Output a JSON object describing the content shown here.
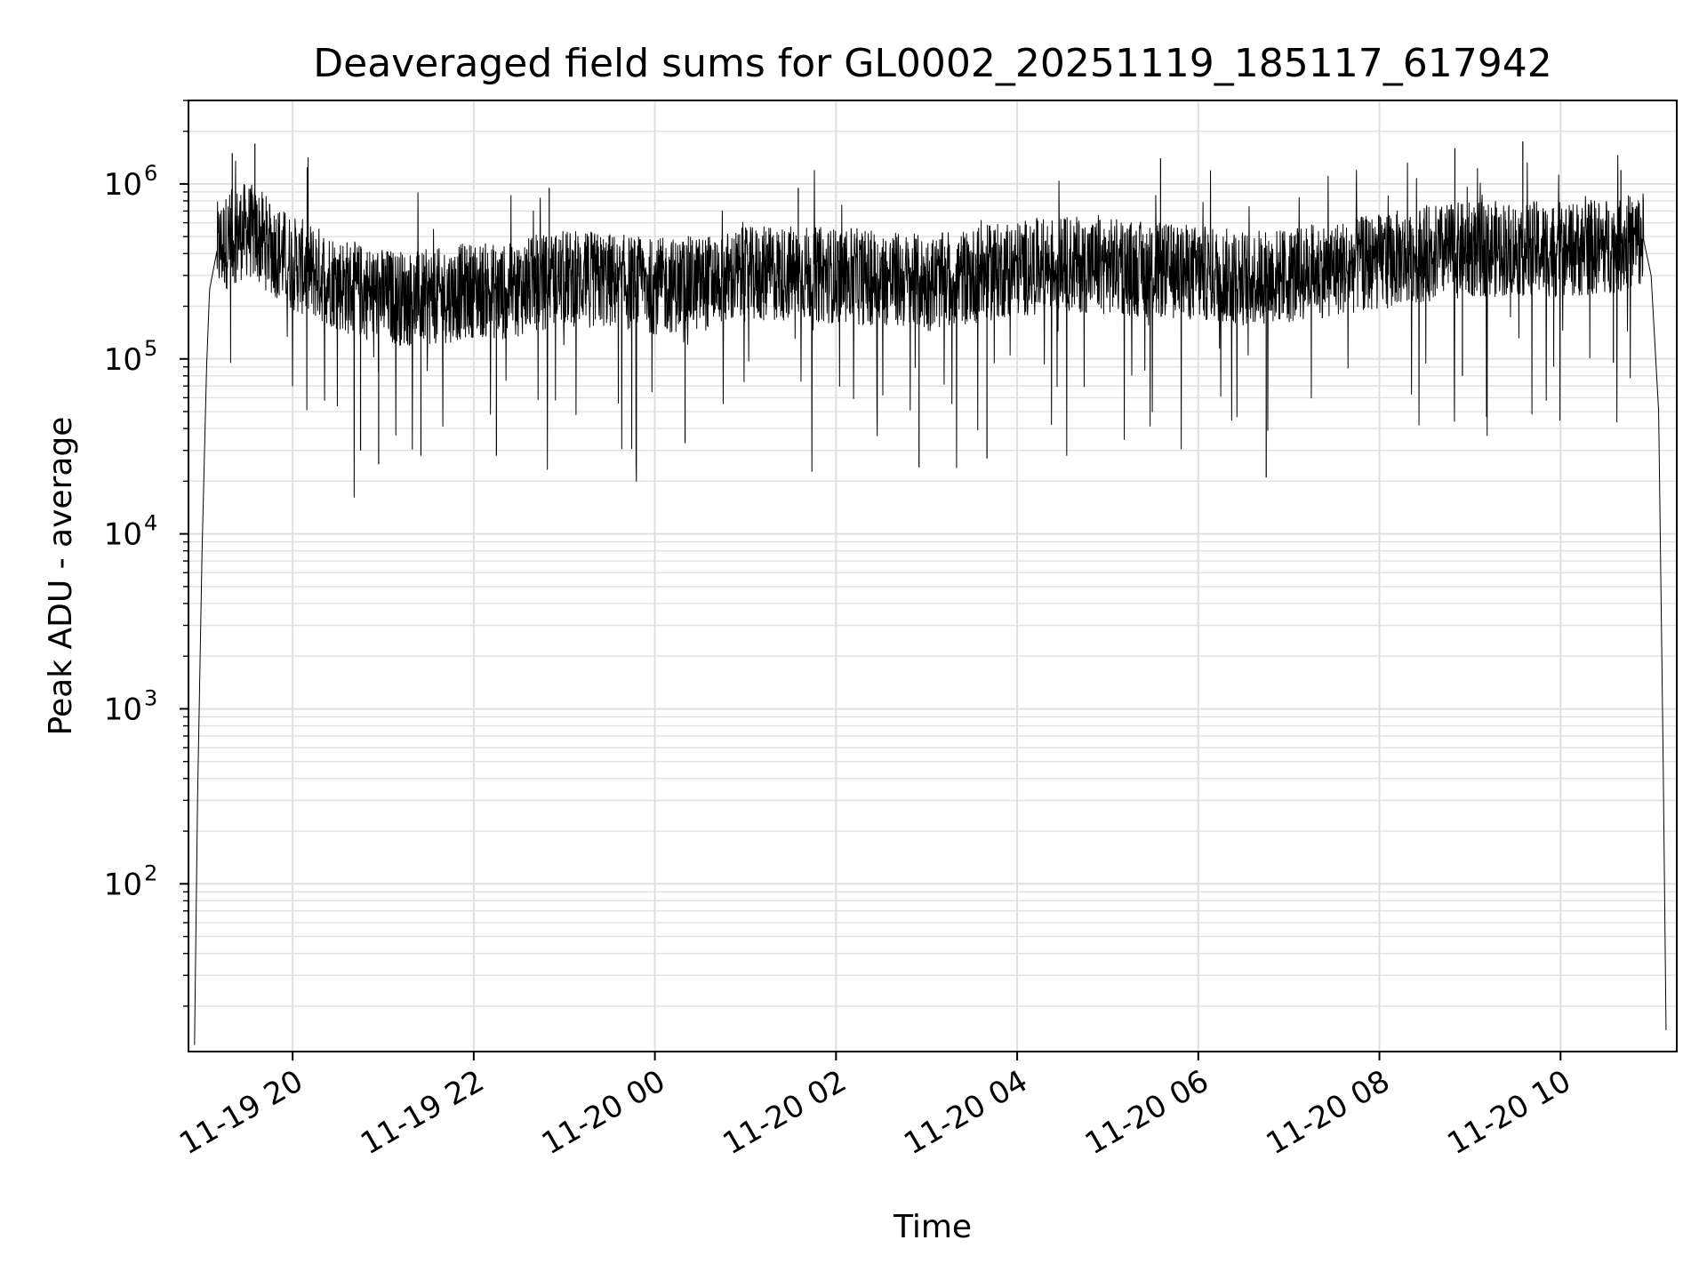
{
  "chart_data": {
    "type": "line",
    "title": "Deaveraged field sums for GL0002_20251119_185117_617942",
    "xlabel": "Time",
    "ylabel": "Peak ADU - average",
    "y_scale": "log",
    "ylim": [
      11,
      3000000
    ],
    "xlim": [
      "2025-11-19 18:51",
      "2025-11-20 11:17"
    ],
    "grid": true,
    "grid_minor": true,
    "line_color": "#000000",
    "grid_color": "#e0e0e0",
    "x_ticks": [
      {
        "value": "2025-11-19 20:00",
        "label": "11-19 20"
      },
      {
        "value": "2025-11-19 22:00",
        "label": "11-19 22"
      },
      {
        "value": "2025-11-20 00:00",
        "label": "11-20 00"
      },
      {
        "value": "2025-11-20 02:00",
        "label": "11-20 02"
      },
      {
        "value": "2025-11-20 04:00",
        "label": "11-20 04"
      },
      {
        "value": "2025-11-20 06:00",
        "label": "11-20 06"
      },
      {
        "value": "2025-11-20 08:00",
        "label": "11-20 08"
      },
      {
        "value": "2025-11-20 10:00",
        "label": "11-20 10"
      }
    ],
    "y_ticks": [
      {
        "value": 100,
        "base": "10",
        "exp": "2"
      },
      {
        "value": 1000,
        "base": "10",
        "exp": "3"
      },
      {
        "value": 10000,
        "base": "10",
        "exp": "4"
      },
      {
        "value": 100000,
        "base": "10",
        "exp": "5"
      },
      {
        "value": 1000000,
        "base": "10",
        "exp": "6"
      }
    ],
    "series": [
      {
        "points": [
          [
            "2025-11-19 18:55",
            12
          ],
          [
            "2025-11-19 18:57",
            300
          ],
          [
            "2025-11-19 19:00",
            8000
          ],
          [
            "2025-11-19 19:03",
            90000
          ],
          [
            "2025-11-19 19:05",
            250000
          ],
          [
            "2025-11-19 19:10",
            420000
          ],
          [
            "2025-11-19 19:20",
            500000
          ],
          [
            "2025-11-19 19:30",
            550000
          ],
          [
            "2025-11-19 19:40",
            480000
          ],
          [
            "2025-11-19 20:00",
            350000
          ],
          [
            "2025-11-19 20:20",
            300000
          ],
          [
            "2025-11-19 20:40",
            250000
          ],
          [
            "2025-11-19 21:00",
            230000
          ],
          [
            "2025-11-19 21:20",
            220000
          ],
          [
            "2025-11-19 21:40",
            230000
          ],
          [
            "2025-11-19 22:00",
            250000
          ],
          [
            "2025-11-19 22:20",
            240000
          ],
          [
            "2025-11-19 22:40",
            270000
          ],
          [
            "2025-11-19 23:00",
            290000
          ],
          [
            "2025-11-19 23:30",
            280000
          ],
          [
            "2025-11-20 00:00",
            260000
          ],
          [
            "2025-11-20 00:30",
            270000
          ],
          [
            "2025-11-20 01:00",
            300000
          ],
          [
            "2025-11-20 01:30",
            310000
          ],
          [
            "2025-11-20 02:00",
            300000
          ],
          [
            "2025-11-20 02:30",
            290000
          ],
          [
            "2025-11-20 03:00",
            270000
          ],
          [
            "2025-11-20 03:30",
            300000
          ],
          [
            "2025-11-20 04:00",
            330000
          ],
          [
            "2025-11-20 04:30",
            350000
          ],
          [
            "2025-11-20 05:00",
            340000
          ],
          [
            "2025-11-20 05:30",
            320000
          ],
          [
            "2025-11-20 06:00",
            310000
          ],
          [
            "2025-11-20 06:30",
            290000
          ],
          [
            "2025-11-20 07:00",
            300000
          ],
          [
            "2025-11-20 07:30",
            330000
          ],
          [
            "2025-11-20 08:00",
            360000
          ],
          [
            "2025-11-20 08:30",
            400000
          ],
          [
            "2025-11-20 09:00",
            420000
          ],
          [
            "2025-11-20 09:30",
            430000
          ],
          [
            "2025-11-20 10:00",
            420000
          ],
          [
            "2025-11-20 10:30",
            440000
          ],
          [
            "2025-11-20 10:55",
            480000
          ],
          [
            "2025-11-20 11:00",
            300000
          ],
          [
            "2025-11-20 11:05",
            50000
          ],
          [
            "2025-11-20 11:08",
            500
          ],
          [
            "2025-11-20 11:10",
            12
          ]
        ],
        "spikes_high": [
          [
            "2025-11-19 19:20",
            1500000
          ],
          [
            "2025-11-19 19:35",
            1700000
          ],
          [
            "2025-11-19 20:10",
            900000
          ],
          [
            "2025-11-19 22:50",
            950000
          ],
          [
            "2025-11-20 01:35",
            950000
          ],
          [
            "2025-11-20 05:35",
            1400000
          ],
          [
            "2025-11-20 08:50",
            1600000
          ],
          [
            "2025-11-20 09:35",
            1750000
          ],
          [
            "2025-11-20 10:40",
            1200000
          ]
        ],
        "spikes_low": [
          [
            "2025-11-19 20:45",
            30000
          ],
          [
            "2025-11-19 20:57",
            25000
          ],
          [
            "2025-11-19 21:25",
            28000
          ],
          [
            "2025-11-19 22:15",
            28000
          ],
          [
            "2025-11-20 00:20",
            33000
          ],
          [
            "2025-11-20 02:55",
            24000
          ],
          [
            "2025-11-20 03:40",
            27000
          ],
          [
            "2025-11-20 06:45",
            21000
          ],
          [
            "2025-11-20 08:55",
            80000
          ],
          [
            "2025-11-20 10:35",
            95000
          ]
        ]
      }
    ]
  }
}
